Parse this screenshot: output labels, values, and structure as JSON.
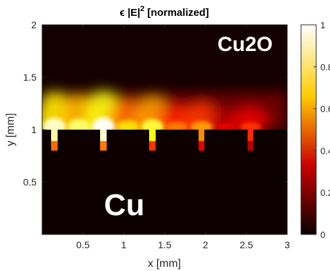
{
  "chart_data": {
    "type": "heatmap",
    "title": "ϵ |E|² [normalized]",
    "title_prefix": "ϵ |E|",
    "title_sup": "2",
    "title_suffix": " [normalized]",
    "xlabel": "x [mm]",
    "ylabel": "y [mm]",
    "xlim": [
      0,
      3
    ],
    "ylim": [
      0,
      2
    ],
    "xticks": [
      0.5,
      1,
      1.5,
      2,
      2.5,
      3
    ],
    "xtick_labels": [
      "0.5",
      "1",
      "1.5",
      "2",
      "2.5",
      "3"
    ],
    "yticks": [
      0.5,
      1,
      1.5,
      2
    ],
    "ytick_labels": [
      "0.5",
      "1",
      "1.5",
      "2"
    ],
    "colorbar": {
      "range": [
        0,
        1
      ],
      "ticks": [
        0,
        0.2,
        0.4,
        0.6,
        0.8,
        1
      ],
      "tick_labels": [
        "0",
        "0.2",
        "0.4",
        "0.6",
        "0.8",
        "1"
      ],
      "colormap": "hot"
    },
    "interface_y": 1.0,
    "groove_depth": 0.2,
    "groove_centers_x": [
      0.15,
      0.75,
      1.35,
      1.95,
      2.55
    ],
    "groove_widths": [
      0.08,
      0.08,
      0.08,
      0.07,
      0.07
    ],
    "field_peaks": [
      {
        "x": 0.15,
        "value": 0.95
      },
      {
        "x": 0.45,
        "value": 0.85
      },
      {
        "x": 0.75,
        "value": 1.0
      },
      {
        "x": 1.05,
        "value": 0.7
      },
      {
        "x": 1.35,
        "value": 0.8
      },
      {
        "x": 1.65,
        "value": 0.55
      },
      {
        "x": 1.95,
        "value": 0.6
      },
      {
        "x": 2.25,
        "value": 0.35
      },
      {
        "x": 2.55,
        "value": 0.45
      }
    ],
    "region_labels": {
      "upper": "Cu2O",
      "lower": "Cu"
    }
  },
  "colors": {
    "background": "#ffffff",
    "axis": "#262626",
    "metal": "#0d0000",
    "region_label": "#ffffff"
  }
}
